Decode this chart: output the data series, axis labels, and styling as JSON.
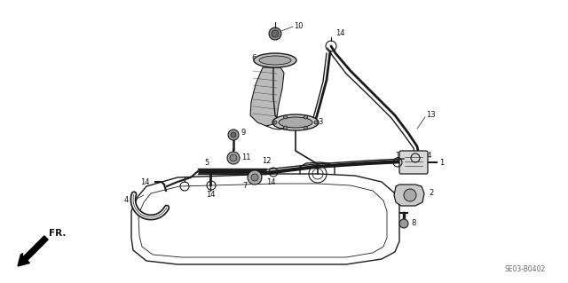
{
  "bg_color": "#ffffff",
  "fig_width": 6.4,
  "fig_height": 3.19,
  "dpi": 100,
  "diagram_code": "SE03-B0402",
  "line_color": "#1a1a1a",
  "label_fontsize": 6.0
}
